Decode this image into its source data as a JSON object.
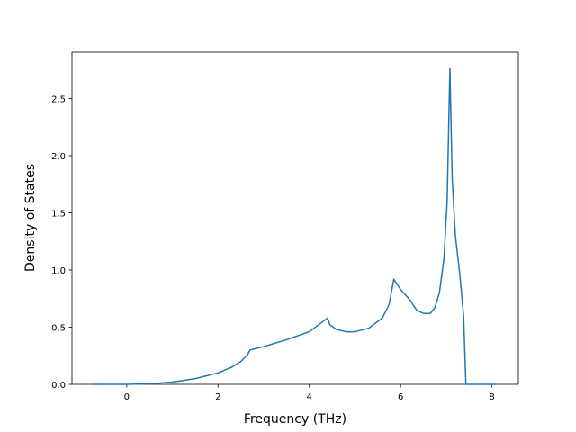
{
  "chart_data": {
    "type": "line",
    "x_label": "Frequency (THz)",
    "y_label": "Density of States",
    "x": [
      -0.75,
      0,
      0.5,
      1.0,
      1.5,
      2.0,
      2.3,
      2.5,
      2.65,
      2.7,
      3.0,
      3.5,
      4.0,
      4.4,
      4.45,
      4.6,
      4.8,
      5.0,
      5.3,
      5.6,
      5.75,
      5.85,
      6.0,
      6.2,
      6.35,
      6.5,
      6.65,
      6.75,
      6.85,
      6.95,
      7.02,
      7.08,
      7.13,
      7.2,
      7.3,
      7.38,
      7.43,
      8.1
    ],
    "series": [
      {
        "color": "#1f77b4",
        "values": [
          0,
          0,
          0.005,
          0.02,
          0.05,
          0.1,
          0.15,
          0.2,
          0.26,
          0.3,
          0.33,
          0.39,
          0.46,
          0.58,
          0.52,
          0.48,
          0.46,
          0.46,
          0.49,
          0.58,
          0.7,
          0.92,
          0.83,
          0.74,
          0.65,
          0.62,
          0.62,
          0.67,
          0.8,
          1.1,
          1.6,
          2.76,
          1.8,
          1.3,
          0.95,
          0.6,
          0,
          0
        ]
      }
    ],
    "xlim": [
      -1.2,
      8.58
    ],
    "ylim": [
      0,
      2.905
    ],
    "xticks": [
      0,
      2,
      4,
      6,
      8
    ],
    "yticks": [
      {
        "value": 0,
        "label": "0.0"
      },
      0.5,
      {
        "value": 1,
        "label": "1.0"
      },
      1.5,
      {
        "value": 2,
        "label": "2.0"
      },
      2.5
    ]
  }
}
